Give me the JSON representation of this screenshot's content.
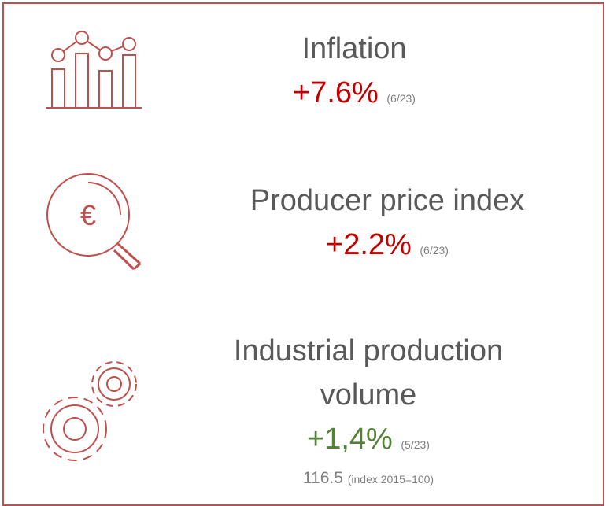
{
  "items": [
    {
      "label": "Inflation",
      "value": "+7.6%",
      "period": "(6/23)"
    },
    {
      "label": "Producer price index",
      "value": "+2.2%",
      "period": "(6/23)"
    },
    {
      "label": "Industrial production volume",
      "value": "+1,4%",
      "period": "(5/23)",
      "extra_value": "116.5",
      "extra_note": "(index 2015=100)"
    }
  ]
}
